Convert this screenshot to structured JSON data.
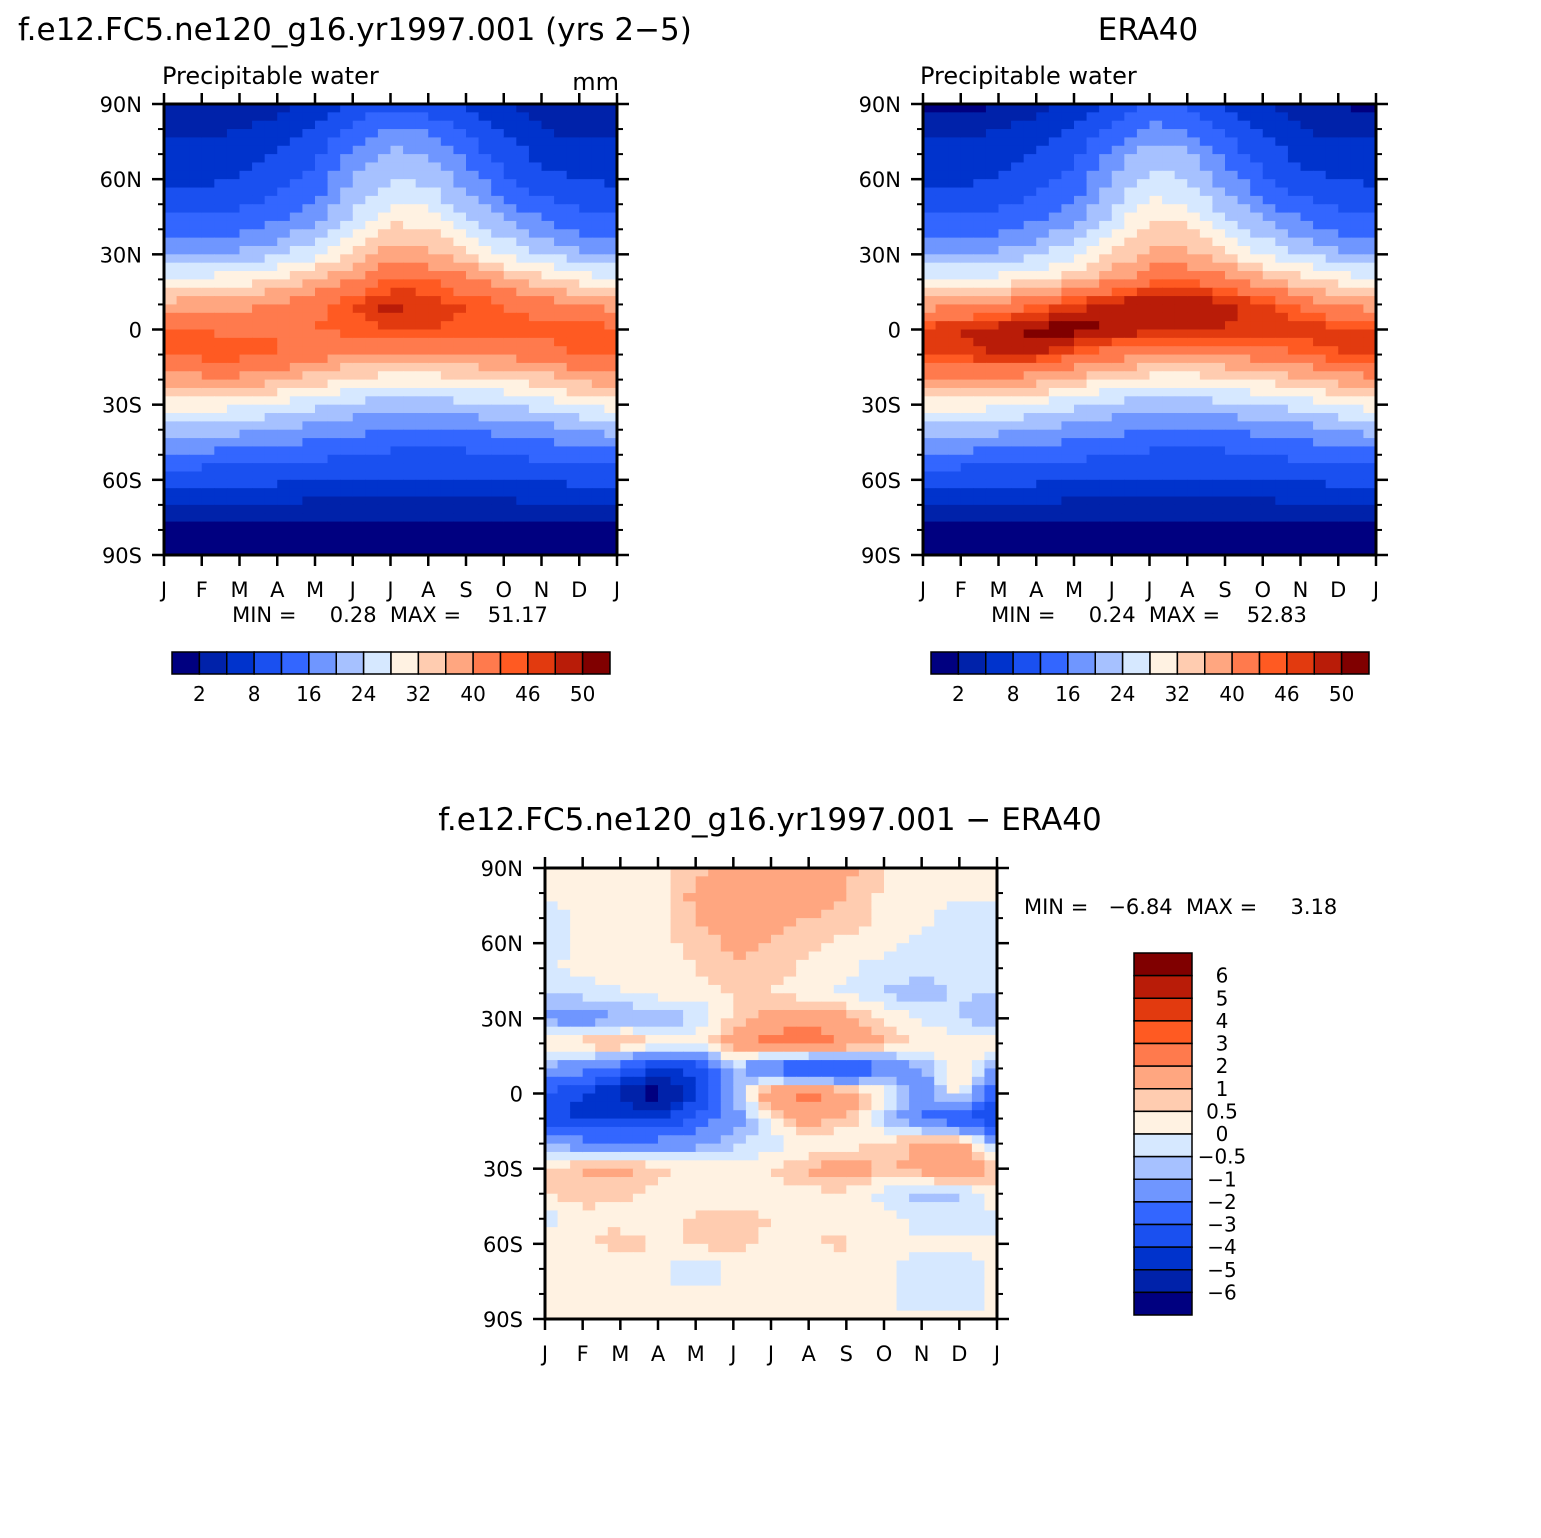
{
  "chart_data": [
    {
      "type": "heatmap",
      "panel": "model",
      "title": "f.e12.FC5.ne120_g16.yr1997.001 (yrs 2−5)",
      "subtitle": "Precipitable water",
      "units": "mm",
      "x_ticks": [
        "J",
        "F",
        "M",
        "A",
        "M",
        "J",
        "J",
        "A",
        "S",
        "O",
        "N",
        "D",
        "J"
      ],
      "y_ticks": [
        "90N",
        "60N",
        "30N",
        "0",
        "30S",
        "60S",
        "90S"
      ],
      "stats_label": "MIN =     0.28  MAX =    51.17",
      "min": 0.28,
      "max": 51.17,
      "colorbar_levels": [
        2,
        4,
        8,
        12,
        16,
        20,
        24,
        28,
        32,
        36,
        40,
        44,
        46,
        48,
        50
      ],
      "colorbar_tick_labels": [
        "2",
        "8",
        "16",
        "24",
        "32",
        "40",
        "46",
        "50"
      ],
      "colors": [
        "#000080",
        "#0022aa",
        "#0033cc",
        "#1a50f0",
        "#3366ff",
        "#6f96ff",
        "#a6c1ff",
        "#d6e8ff",
        "#fff2e2",
        "#ffccb0",
        "#ffa680",
        "#ff7a4d",
        "#ff5a22",
        "#e23a0f",
        "#b91c08",
        "#800000"
      ],
      "latitudes": [
        90,
        80,
        70,
        60,
        50,
        40,
        30,
        20,
        10,
        0,
        -10,
        -20,
        -30,
        -40,
        -50,
        -60,
        -70,
        -80,
        -90
      ],
      "monthly_means_by_latitude": [
        [
          2,
          2,
          2,
          3,
          5,
          9,
          11,
          10,
          7,
          4,
          2,
          2,
          2
        ],
        [
          3,
          3,
          4,
          5,
          8,
          13,
          16,
          15,
          11,
          7,
          4,
          3,
          3
        ],
        [
          5,
          5,
          6,
          8,
          11,
          17,
          21,
          20,
          15,
          10,
          7,
          5,
          5
        ],
        [
          7,
          7,
          8,
          10,
          13,
          20,
          24,
          23,
          18,
          13,
          9,
          8,
          7
        ],
        [
          10,
          10,
          11,
          13,
          16,
          23,
          28,
          27,
          22,
          17,
          13,
          11,
          10
        ],
        [
          14,
          14,
          15,
          17,
          21,
          27,
          33,
          32,
          27,
          22,
          18,
          15,
          14
        ],
        [
          20,
          20,
          21,
          23,
          27,
          33,
          38,
          37,
          33,
          28,
          24,
          21,
          20
        ],
        [
          28,
          29,
          30,
          32,
          36,
          40,
          44,
          44,
          41,
          37,
          33,
          30,
          28
        ],
        [
          37,
          38,
          39,
          41,
          43,
          46,
          49,
          47,
          46,
          44,
          42,
          40,
          38
        ],
        [
          44,
          44,
          43,
          44,
          44,
          45,
          46,
          46,
          45,
          45,
          45,
          46,
          44
        ],
        [
          44,
          45,
          45,
          44,
          42,
          40,
          39,
          39,
          40,
          41,
          42,
          44,
          44
        ],
        [
          38,
          39,
          39,
          37,
          34,
          31,
          30,
          30,
          31,
          32,
          34,
          37,
          38
        ],
        [
          30,
          30,
          29,
          27,
          25,
          23,
          22,
          22,
          23,
          24,
          26,
          28,
          30
        ],
        [
          22,
          22,
          21,
          20,
          18,
          17,
          16,
          16,
          16,
          17,
          18,
          20,
          22
        ],
        [
          15,
          15,
          14,
          14,
          13,
          12,
          11,
          11,
          11,
          12,
          13,
          14,
          15
        ],
        [
          9,
          9,
          9,
          9,
          8,
          8,
          8,
          8,
          8,
          8,
          8,
          9,
          9
        ],
        [
          4,
          4,
          4,
          4,
          3,
          3,
          3,
          3,
          3,
          3,
          4,
          4,
          4
        ],
        [
          1,
          1,
          1,
          1,
          1,
          1,
          1,
          1,
          1,
          1,
          1,
          1,
          1
        ],
        [
          0.5,
          0.5,
          0.5,
          0.5,
          0.5,
          0.5,
          0.5,
          0.5,
          0.5,
          0.5,
          0.5,
          0.5,
          0.5
        ]
      ]
    },
    {
      "type": "heatmap",
      "panel": "obs",
      "title": "ERA40",
      "subtitle": "Precipitable water",
      "x_ticks": [
        "J",
        "F",
        "M",
        "A",
        "M",
        "J",
        "J",
        "A",
        "S",
        "O",
        "N",
        "D",
        "J"
      ],
      "y_ticks": [
        "90N",
        "60N",
        "30N",
        "0",
        "30S",
        "60S",
        "90S"
      ],
      "stats_label": "MIN =     0.24  MAX =    52.83",
      "min": 0.24,
      "max": 52.83,
      "colorbar_levels": [
        2,
        4,
        8,
        12,
        16,
        20,
        24,
        28,
        32,
        36,
        40,
        44,
        46,
        48,
        50
      ],
      "colorbar_tick_labels": [
        "2",
        "8",
        "16",
        "24",
        "32",
        "40",
        "46",
        "50"
      ],
      "colors": [
        "#000080",
        "#0022aa",
        "#0033cc",
        "#1a50f0",
        "#3366ff",
        "#6f96ff",
        "#a6c1ff",
        "#d6e8ff",
        "#fff2e2",
        "#ffccb0",
        "#ffa680",
        "#ff7a4d",
        "#ff5a22",
        "#e23a0f",
        "#b91c08",
        "#800000"
      ],
      "latitudes": [
        90,
        80,
        70,
        60,
        50,
        40,
        30,
        20,
        10,
        0,
        -10,
        -20,
        -30,
        -40,
        -50,
        -60,
        -70,
        -80,
        -90
      ],
      "monthly_means_by_latitude": [
        [
          1,
          1,
          2,
          3,
          5,
          9,
          12,
          11,
          7,
          4,
          2,
          2,
          1
        ],
        [
          3,
          3,
          4,
          5,
          8,
          13,
          17,
          16,
          11,
          7,
          4,
          3,
          3
        ],
        [
          5,
          5,
          6,
          8,
          11,
          17,
          22,
          21,
          15,
          10,
          7,
          5,
          5
        ],
        [
          7,
          7,
          8,
          10,
          13,
          20,
          25,
          24,
          18,
          13,
          9,
          8,
          7
        ],
        [
          10,
          10,
          11,
          13,
          16,
          23,
          29,
          28,
          22,
          17,
          13,
          11,
          10
        ],
        [
          14,
          14,
          15,
          17,
          21,
          27,
          33,
          33,
          27,
          22,
          18,
          15,
          14
        ],
        [
          20,
          20,
          21,
          23,
          27,
          32,
          37,
          37,
          33,
          28,
          24,
          21,
          20
        ],
        [
          28,
          28,
          29,
          31,
          35,
          39,
          43,
          44,
          41,
          37,
          33,
          30,
          28
        ],
        [
          38,
          39,
          41,
          44,
          47,
          49,
          50,
          50,
          49,
          47,
          43,
          40,
          38
        ],
        [
          47,
          48,
          49,
          51,
          51,
          50,
          49,
          49,
          48,
          47,
          47,
          47,
          47
        ],
        [
          46,
          47,
          48,
          48,
          45,
          42,
          40,
          40,
          41,
          42,
          44,
          46,
          46
        ],
        [
          39,
          40,
          40,
          38,
          35,
          32,
          30,
          30,
          31,
          33,
          35,
          38,
          39
        ],
        [
          30,
          30,
          29,
          27,
          25,
          23,
          22,
          22,
          23,
          24,
          26,
          28,
          30
        ],
        [
          22,
          22,
          21,
          20,
          18,
          17,
          16,
          16,
          16,
          17,
          18,
          20,
          22
        ],
        [
          15,
          15,
          14,
          14,
          13,
          12,
          11,
          11,
          11,
          12,
          13,
          14,
          15
        ],
        [
          9,
          9,
          9,
          9,
          8,
          8,
          8,
          8,
          8,
          8,
          8,
          9,
          9
        ],
        [
          4,
          4,
          4,
          4,
          3,
          3,
          3,
          3,
          3,
          3,
          4,
          4,
          4
        ],
        [
          1,
          1,
          1,
          1,
          1,
          1,
          1,
          1,
          1,
          1,
          1,
          1,
          1
        ],
        [
          0.5,
          0.5,
          0.5,
          0.5,
          0.5,
          0.5,
          0.5,
          0.5,
          0.5,
          0.5,
          0.5,
          0.5,
          0.5
        ]
      ]
    },
    {
      "type": "heatmap",
      "panel": "difference",
      "title": "f.e12.FC5.ne120_g16.yr1997.001 − ERA40",
      "x_ticks": [
        "J",
        "F",
        "M",
        "A",
        "M",
        "J",
        "J",
        "A",
        "S",
        "O",
        "N",
        "D",
        "J"
      ],
      "y_ticks": [
        "90N",
        "60N",
        "30N",
        "0",
        "30S",
        "60S",
        "90S"
      ],
      "stats_label": "MIN =   −6.84  MAX =     3.18",
      "min": -6.84,
      "max": 3.18,
      "colorbar_levels": [
        -6,
        -5,
        -4,
        -3,
        -2,
        -1,
        -0.5,
        0,
        0.5,
        1,
        2,
        3,
        4,
        5,
        6
      ],
      "colorbar_tick_labels": [
        "6",
        "5",
        "4",
        "3",
        "2",
        "1",
        "0.5",
        "0",
        "−0.5",
        "−1",
        "−2",
        "−3",
        "−4",
        "−5",
        "−6"
      ],
      "colors": [
        "#000080",
        "#0022aa",
        "#0033cc",
        "#1a50f0",
        "#3366ff",
        "#6f96ff",
        "#a6c1ff",
        "#d6e8ff",
        "#fff2e2",
        "#ffccb0",
        "#ffa680",
        "#ff7a4d",
        "#ff5a22",
        "#e23a0f",
        "#b91c08",
        "#800000"
      ],
      "latitudes": [
        90,
        80,
        70,
        60,
        50,
        40,
        30,
        20,
        10,
        0,
        -10,
        -20,
        -30,
        -40,
        -50,
        -60,
        -70,
        -80,
        -90
      ],
      "monthly_means_by_latitude": [
        [
          0.1,
          0.2,
          0.2,
          0.3,
          0.8,
          1.2,
          1.6,
          2.2,
          1.2,
          0.5,
          0.3,
          0.2,
          0.1
        ],
        [
          0.1,
          0.2,
          0.2,
          0.3,
          1.2,
          1.5,
          1.5,
          1.2,
          1.0,
          0.4,
          0.2,
          0.1,
          0.1
        ],
        [
          -0.2,
          0.1,
          0.2,
          0.3,
          1.0,
          1.4,
          1.3,
          1.0,
          0.8,
          0.3,
          0.1,
          -0.3,
          -0.2
        ],
        [
          -0.3,
          0.1,
          0.2,
          0.3,
          0.7,
          1.1,
          1.0,
          0.6,
          0.3,
          0.2,
          -0.1,
          -0.5,
          -0.3
        ],
        [
          -0.1,
          0.2,
          0.2,
          0.3,
          0.5,
          1.0,
          0.8,
          0.3,
          0.1,
          -0.2,
          -0.4,
          -0.2,
          -0.1
        ],
        [
          -0.6,
          -0.3,
          0.0,
          0.2,
          0.3,
          0.5,
          0.5,
          0.2,
          -0.1,
          -0.6,
          -0.8,
          -0.4,
          -0.6
        ],
        [
          -1.2,
          -1.6,
          -1.1,
          -0.9,
          -0.6,
          0.6,
          1.4,
          1.7,
          1.2,
          0.5,
          -0.2,
          -0.5,
          -1.2
        ],
        [
          0.6,
          0.9,
          1.2,
          0.4,
          0.3,
          1.6,
          2.3,
          2.7,
          2.0,
          1.0,
          0.5,
          0.3,
          0.6
        ],
        [
          -1.2,
          -1.6,
          -2.6,
          -4.1,
          -3.6,
          -0.6,
          -2.6,
          -3.6,
          -4.0,
          -2.1,
          -1.1,
          0.6,
          -1.2
        ],
        [
          -3.1,
          -4.0,
          -5.2,
          -6.8,
          -4.1,
          -1.1,
          1.8,
          2.4,
          1.7,
          0.4,
          -1.6,
          0.3,
          -3.1
        ],
        [
          -3.6,
          -4.3,
          -4.2,
          -4.1,
          -2.6,
          -1.6,
          0.3,
          1.4,
          0.8,
          -0.6,
          -2.1,
          -3.1,
          -3.6
        ],
        [
          -1.1,
          -1.6,
          -1.8,
          -1.6,
          -1.3,
          -0.7,
          -0.2,
          0.0,
          0.1,
          0.6,
          1.2,
          1.4,
          -1.1
        ],
        [
          0.6,
          1.1,
          1.2,
          0.7,
          0.3,
          0.2,
          0.5,
          1.1,
          1.6,
          0.9,
          1.2,
          2.2,
          0.6
        ],
        [
          0.5,
          0.7,
          0.6,
          0.3,
          0.2,
          0.1,
          0.2,
          0.3,
          0.4,
          -0.3,
          -0.8,
          -0.6,
          0.5
        ],
        [
          -0.3,
          0.4,
          0.3,
          0.0,
          0.6,
          0.8,
          0.5,
          0.4,
          0.2,
          0.2,
          -0.2,
          -0.4,
          -0.3
        ],
        [
          0.2,
          0.3,
          0.8,
          0.4,
          0.6,
          0.7,
          0.3,
          0.5,
          0.6,
          0.2,
          0.1,
          0.2,
          0.2
        ],
        [
          0.1,
          0.2,
          0.2,
          0.1,
          -0.6,
          0.1,
          0.2,
          0.2,
          0.1,
          0.1,
          -0.3,
          -0.3,
          0.1
        ],
        [
          0.1,
          0.1,
          0.1,
          0.1,
          0.1,
          0.1,
          0.1,
          0.1,
          0.1,
          0.1,
          -0.4,
          -0.4,
          0.1
        ],
        [
          0.1,
          0.1,
          0.1,
          0.1,
          0.1,
          0.1,
          0.1,
          0.1,
          0.1,
          0.1,
          0.1,
          0.1,
          0.1
        ]
      ]
    }
  ]
}
